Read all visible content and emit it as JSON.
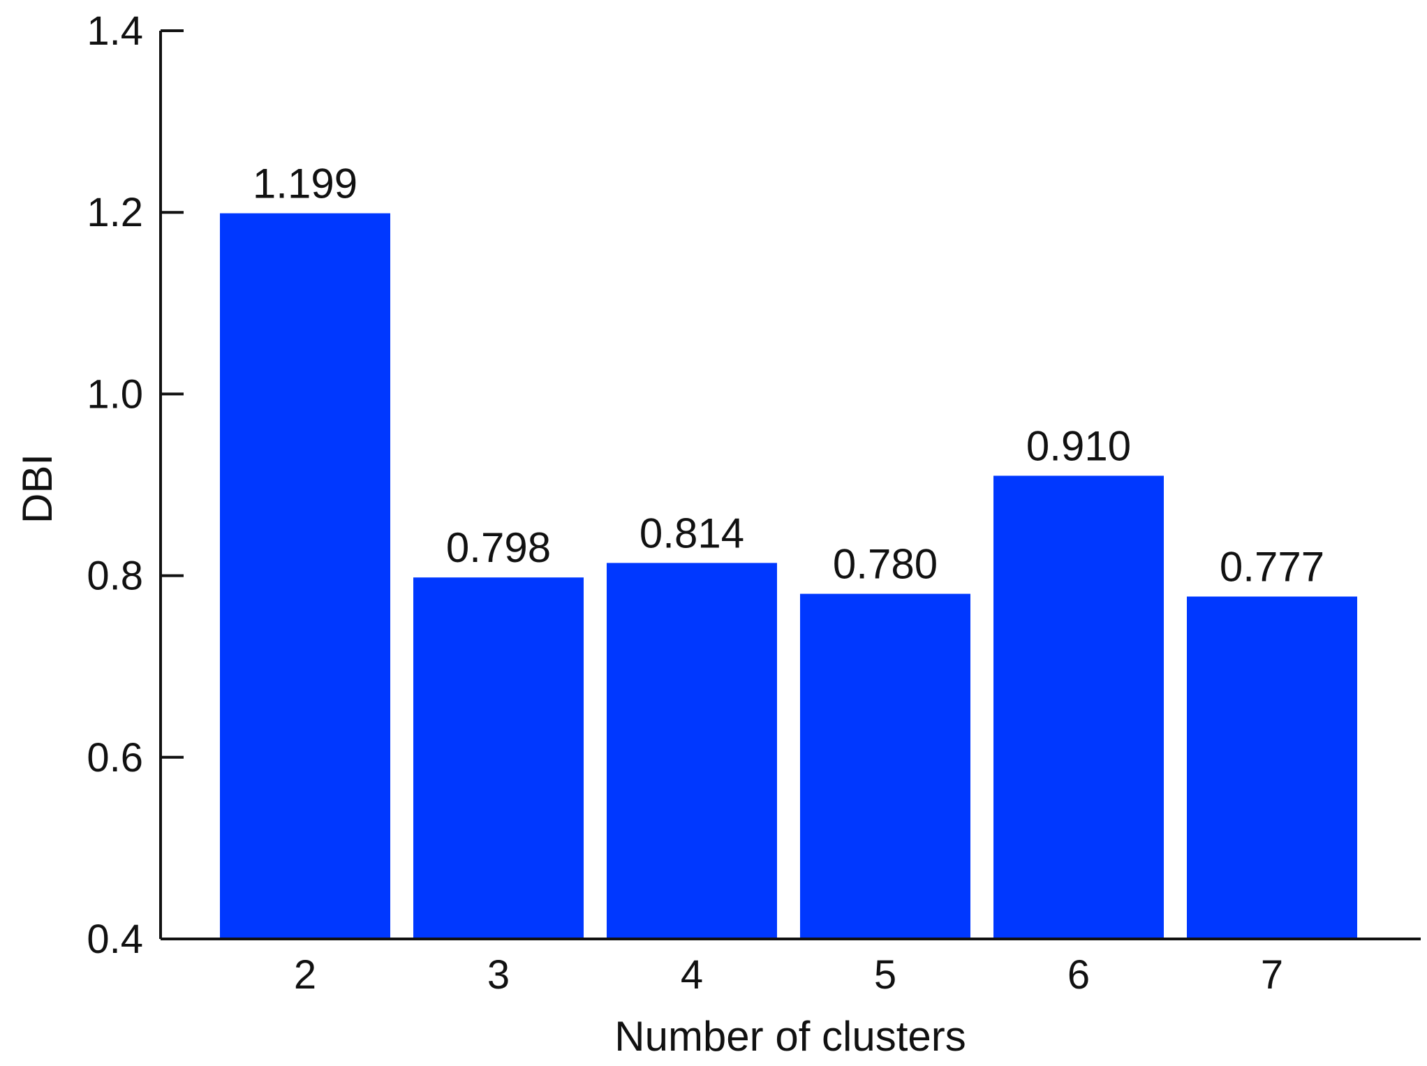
{
  "chart_data": {
    "type": "bar",
    "title": "",
    "xlabel": "Number of clusters",
    "ylabel": "DBI",
    "categories": [
      "2",
      "3",
      "4",
      "5",
      "6",
      "7"
    ],
    "values": [
      1.199,
      0.798,
      0.814,
      0.78,
      0.91,
      0.777
    ],
    "data_labels": [
      "1.199",
      "0.798",
      "0.814",
      "0.780",
      "0.910",
      "0.777"
    ],
    "ylim": [
      0.4,
      1.4
    ],
    "yticks": [
      "0.4",
      "0.6",
      "0.8",
      "1.0",
      "1.2",
      "1.4"
    ],
    "bar_color": "#0038FF",
    "grid": false,
    "legend": "none"
  }
}
